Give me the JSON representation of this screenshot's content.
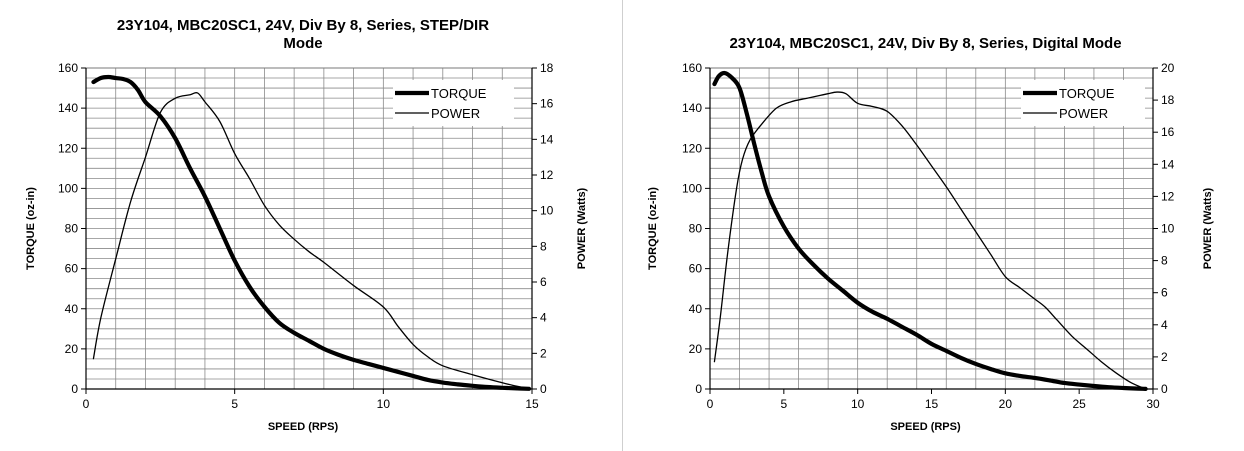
{
  "chart_data": [
    {
      "type": "line",
      "title_lines": [
        "23Y104, MBC20SC1, 24V, Div By 8, Series, STEP/DIR",
        "Mode"
      ],
      "xlabel": "SPEED (RPS)",
      "ylabel": "TORQUE (oz-in)",
      "y2label": "POWER (Watts)",
      "xlim": [
        0,
        15
      ],
      "ylim": [
        0,
        160
      ],
      "y2lim": [
        0,
        18
      ],
      "x_ticks": [
        0,
        5,
        10,
        15
      ],
      "y_ticks": [
        0,
        20,
        40,
        60,
        80,
        100,
        120,
        140,
        160
      ],
      "y2_ticks": [
        0,
        2,
        4,
        6,
        8,
        10,
        12,
        14,
        16,
        18
      ],
      "grid": true,
      "legend_position": "top-right",
      "series": [
        {
          "name": "TORQUE",
          "axis": "left",
          "line_weight": "heavy",
          "x": [
            0.25,
            0.5,
            0.75,
            1.0,
            1.25,
            1.5,
            1.75,
            2.0,
            2.5,
            3.0,
            3.5,
            4.0,
            4.5,
            5.0,
            5.5,
            6.0,
            6.5,
            7.0,
            7.5,
            8.0,
            8.5,
            9.0,
            9.5,
            10.0,
            10.5,
            11.0,
            11.5,
            12.0,
            12.5,
            13.0,
            13.5,
            14.0,
            14.5,
            14.9
          ],
          "values": [
            153,
            155,
            155.5,
            155,
            154.5,
            153,
            149,
            143,
            136,
            125,
            110,
            96,
            80,
            64,
            51,
            41,
            33,
            28,
            24,
            20,
            17,
            14.5,
            12.5,
            10.5,
            8.5,
            6.5,
            4.5,
            3.2,
            2.3,
            1.6,
            1.0,
            0.6,
            0.3,
            0.1
          ]
        },
        {
          "name": "POWER",
          "axis": "right",
          "line_weight": "thin",
          "x": [
            0.25,
            0.5,
            1.0,
            1.5,
            2.0,
            2.5,
            3.0,
            3.5,
            3.75,
            4.0,
            4.5,
            5.0,
            5.5,
            6.0,
            6.5,
            7.0,
            7.5,
            8.0,
            9.0,
            10.0,
            10.5,
            11.0,
            11.5,
            12.0,
            13.0,
            14.0,
            14.5,
            14.9
          ],
          "values": [
            1.7,
            4.0,
            7.3,
            10.5,
            13.0,
            15.5,
            16.3,
            16.5,
            16.6,
            16.1,
            15.0,
            13.2,
            11.8,
            10.3,
            9.2,
            8.4,
            7.7,
            7.1,
            5.8,
            4.6,
            3.5,
            2.5,
            1.8,
            1.3,
            0.8,
            0.35,
            0.15,
            0.0
          ]
        }
      ]
    },
    {
      "type": "line",
      "title_lines": [
        "23Y104, MBC20SC1, 24V, Div By 8, Series, Digital Mode"
      ],
      "xlabel": "SPEED (RPS)",
      "ylabel": "TORQUE (oz-in)",
      "y2label": "POWER (Watts)",
      "xlim": [
        0,
        30
      ],
      "ylim": [
        0,
        160
      ],
      "y2lim": [
        0,
        20
      ],
      "x_ticks": [
        0,
        5,
        10,
        15,
        20,
        25,
        30
      ],
      "y_ticks": [
        0,
        20,
        40,
        60,
        80,
        100,
        120,
        140,
        160
      ],
      "y2_ticks": [
        0,
        2,
        4,
        6,
        8,
        10,
        12,
        14,
        16,
        18,
        20
      ],
      "grid": true,
      "legend_position": "top-right",
      "series": [
        {
          "name": "TORQUE",
          "axis": "left",
          "line_weight": "heavy",
          "x": [
            0.3,
            0.6,
            1.0,
            1.5,
            2.0,
            2.5,
            3.0,
            3.5,
            4.0,
            5.0,
            6.0,
            7.0,
            8.0,
            9.0,
            10.0,
            11.0,
            12.0,
            13.0,
            14.0,
            15.0,
            16.0,
            17.0,
            18.0,
            19.0,
            20.0,
            21.0,
            22.0,
            23.0,
            24.0,
            25.0,
            26.0,
            27.0,
            28.0,
            29.0,
            29.5
          ],
          "values": [
            152,
            156,
            157.5,
            155,
            150,
            137,
            122,
            108,
            96,
            81,
            70,
            62,
            55,
            49,
            43,
            38.5,
            35,
            31,
            27,
            22.5,
            19,
            15.5,
            12.5,
            10,
            7.8,
            6.5,
            5.5,
            4.3,
            3.0,
            2.2,
            1.5,
            0.9,
            0.5,
            0.2,
            0.05
          ]
        },
        {
          "name": "POWER",
          "axis": "right",
          "line_weight": "thin",
          "x": [
            0.3,
            0.7,
            1.2,
            1.8,
            2.2,
            2.7,
            3.5,
            4.5,
            5.5,
            6.5,
            7.5,
            8.0,
            8.6,
            9.2,
            10.0,
            11.0,
            12.0,
            13.0,
            14.0,
            15.0,
            16.0,
            17.0,
            18.0,
            19.0,
            20.0,
            21.0,
            22.0,
            22.7,
            23.5,
            24.5,
            25.5,
            26.5,
            27.5,
            28.5,
            29.5
          ],
          "values": [
            1.7,
            4.5,
            8.5,
            12.5,
            14.3,
            15.5,
            16.5,
            17.5,
            17.9,
            18.1,
            18.3,
            18.4,
            18.5,
            18.4,
            17.8,
            17.6,
            17.3,
            16.4,
            15.2,
            13.9,
            12.6,
            11.2,
            9.8,
            8.4,
            7.0,
            6.3,
            5.6,
            5.1,
            4.3,
            3.3,
            2.5,
            1.7,
            1.0,
            0.4,
            0.0
          ]
        }
      ]
    }
  ]
}
